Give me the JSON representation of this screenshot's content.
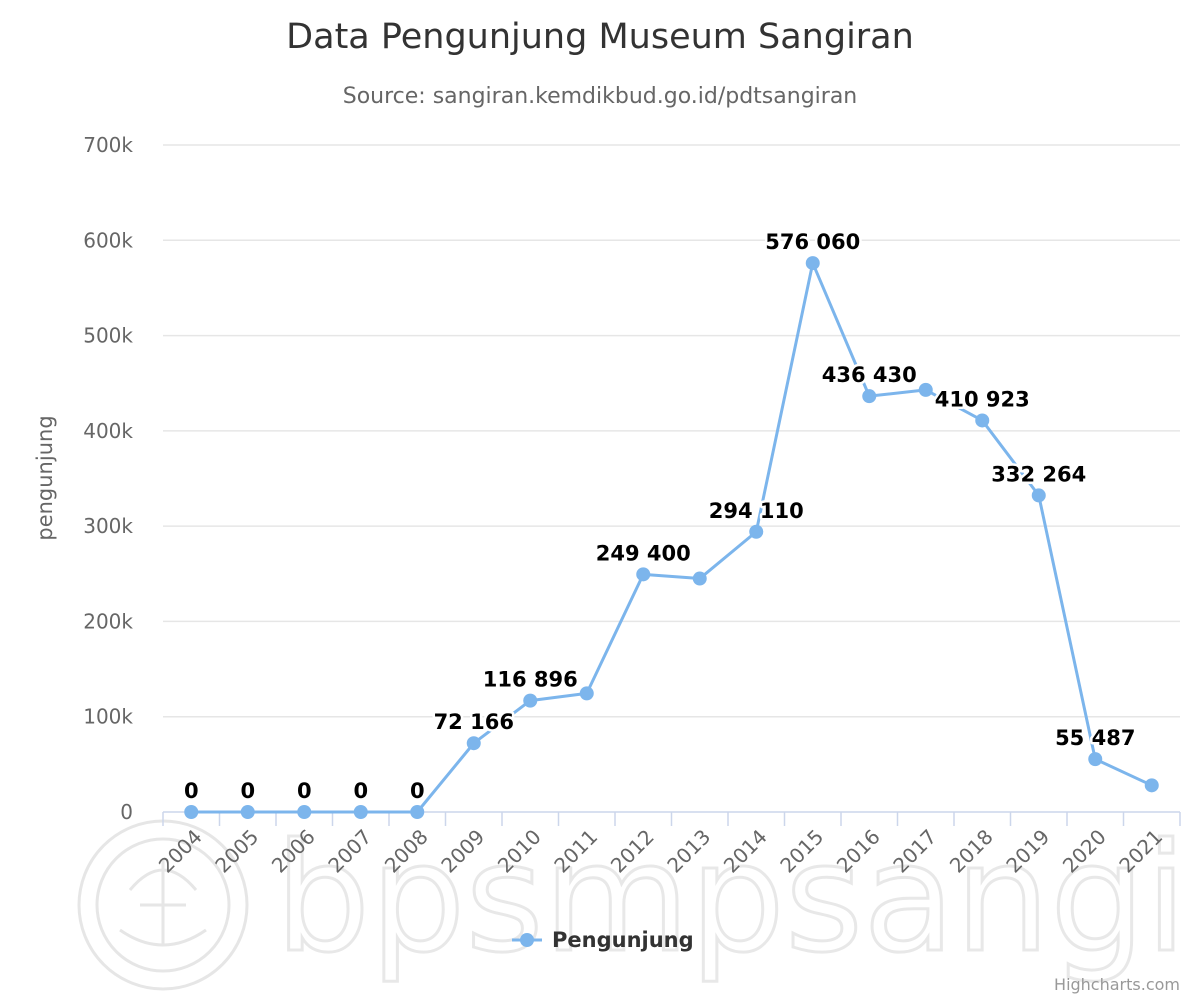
{
  "chart_data": {
    "type": "line",
    "title": "Data Pengunjung Museum Sangiran",
    "subtitle": "Source: sangiran.kemdikbud.go.id/pdtsangiran",
    "ylabel": "pengunjung",
    "ylim": [
      0,
      700000
    ],
    "yticks": [
      0,
      100000,
      200000,
      300000,
      400000,
      500000,
      600000,
      700000
    ],
    "ytick_labels": [
      "0",
      "100k",
      "200k",
      "300k",
      "400k",
      "500k",
      "600k",
      "700k"
    ],
    "categories": [
      "2004",
      "2005",
      "2006",
      "2007",
      "2008",
      "2009",
      "2010",
      "2011",
      "2012",
      "2013",
      "2014",
      "2015",
      "2016",
      "2017",
      "2018",
      "2019",
      "2020",
      "2021"
    ],
    "series": [
      {
        "name": "Pengunjung",
        "color": "#7cb5ec",
        "values": [
          0,
          0,
          0,
          0,
          0,
          72166,
          116896,
          124500,
          249400,
          245000,
          294110,
          576060,
          436430,
          443000,
          410923,
          332264,
          55487,
          28000
        ],
        "data_labels": [
          "0",
          "0",
          "0",
          "0",
          "0",
          "72 166",
          "116 896",
          "",
          "249 400",
          "",
          "294 110",
          "576 060",
          "436 430",
          "",
          "410 923",
          "332 264",
          "55 487",
          ""
        ]
      }
    ],
    "grid": true,
    "legend": "bottom-center",
    "credits": "Highcharts.com",
    "watermark": "bpsmpsangi"
  }
}
